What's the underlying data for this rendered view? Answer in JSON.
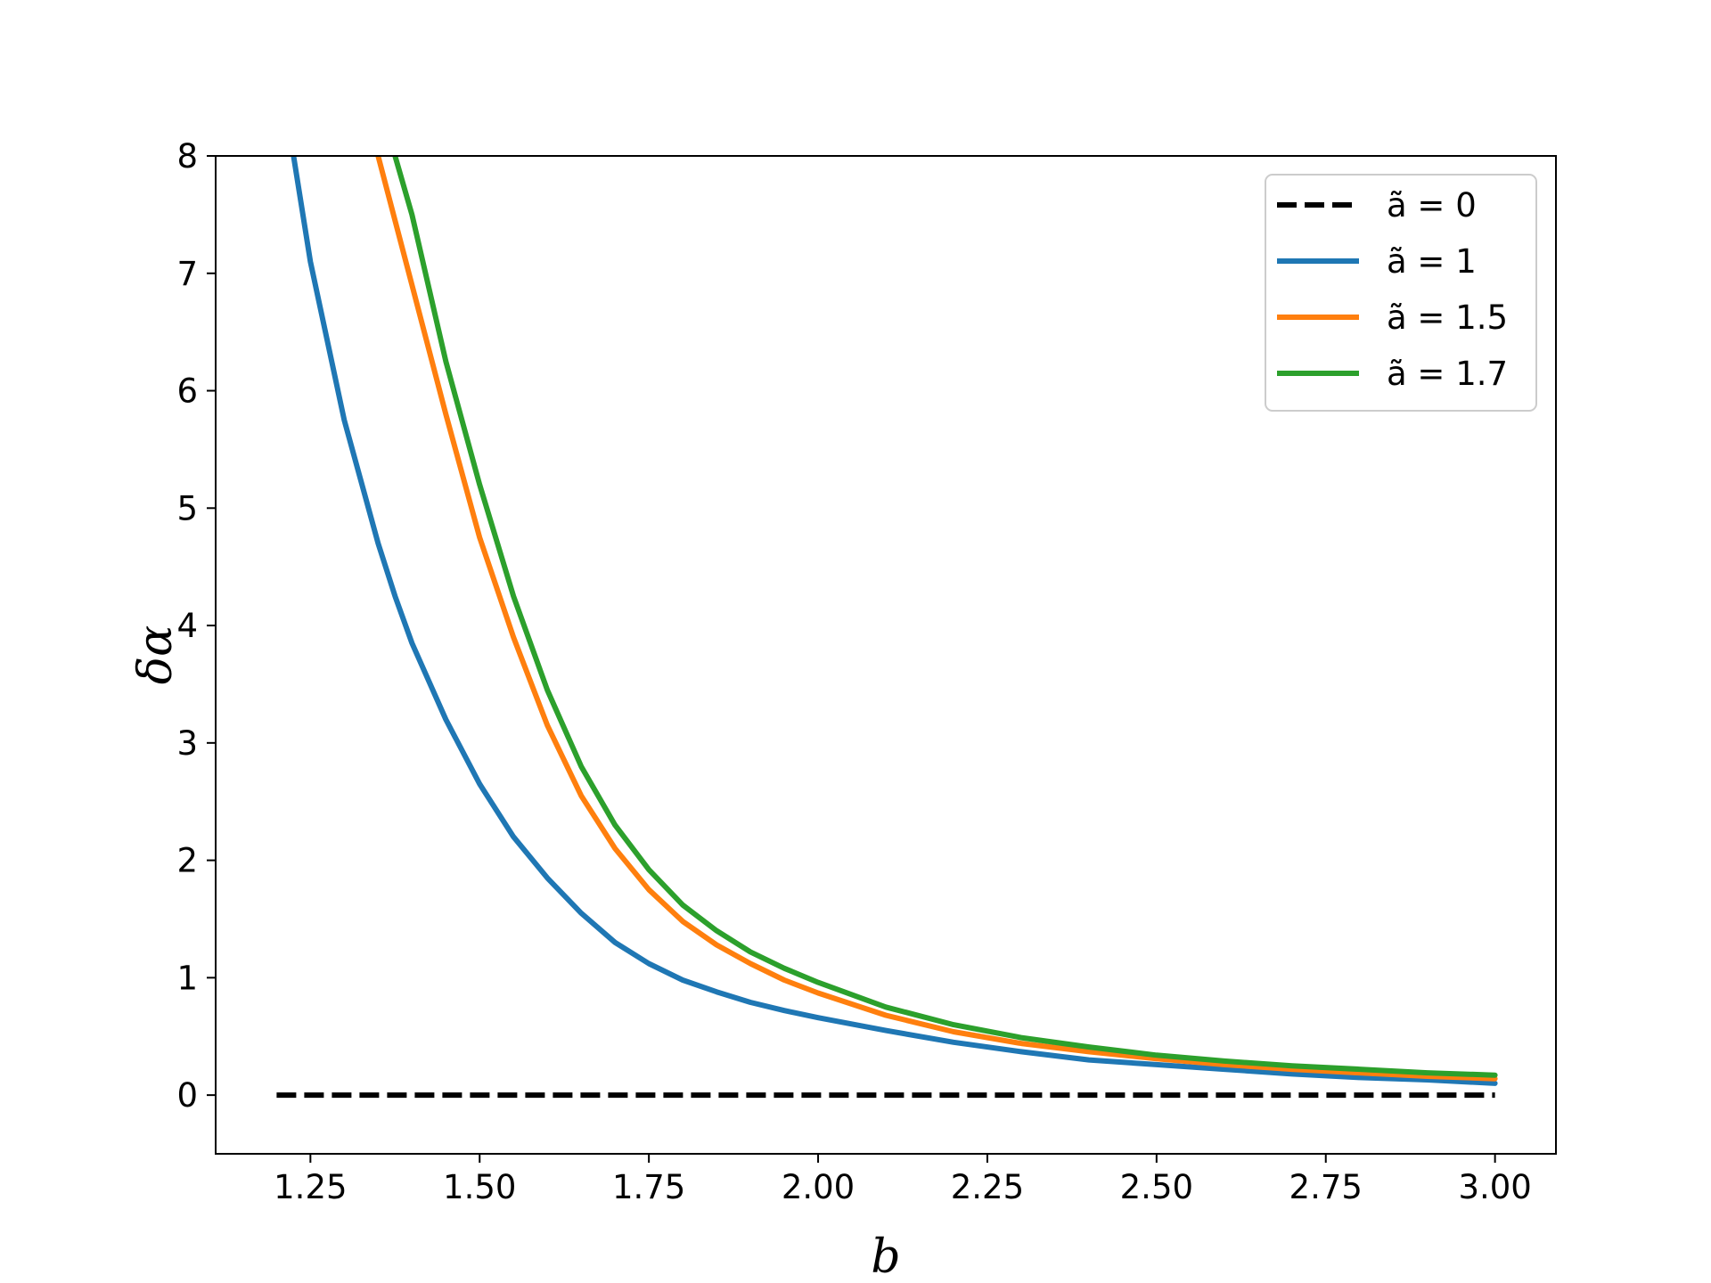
{
  "chart_data": {
    "type": "line",
    "title": "",
    "xlabel": "b",
    "ylabel": "δα",
    "xlim": [
      1.11,
      3.09
    ],
    "ylim": [
      -0.5,
      8
    ],
    "xticks": [
      "1.25",
      "1.50",
      "1.75",
      "2.00",
      "2.25",
      "2.50",
      "2.75",
      "3.00"
    ],
    "yticks": [
      "0",
      "1",
      "2",
      "3",
      "4",
      "5",
      "6",
      "7",
      "8"
    ],
    "grid": false,
    "legend_position": "top-right",
    "x": [
      1.2,
      1.225,
      1.25,
      1.3,
      1.35,
      1.375,
      1.4,
      1.45,
      1.5,
      1.55,
      1.6,
      1.65,
      1.7,
      1.75,
      1.8,
      1.85,
      1.9,
      1.95,
      2.0,
      2.1,
      2.2,
      2.3,
      2.4,
      2.5,
      2.6,
      2.7,
      2.8,
      2.9,
      3.0
    ],
    "series": [
      {
        "name": "ã = 0",
        "color": "#000000",
        "dashed": true,
        "values": [
          0,
          0,
          0,
          0,
          0,
          0,
          0,
          0,
          0,
          0,
          0,
          0,
          0,
          0,
          0,
          0,
          0,
          0,
          0,
          0,
          0,
          0,
          0,
          0,
          0,
          0,
          0,
          0,
          0
        ]
      },
      {
        "name": "ã = 1",
        "color": "#1f77b4",
        "dashed": false,
        "values": [
          null,
          8.0,
          7.1,
          5.75,
          4.7,
          4.25,
          3.85,
          3.2,
          2.65,
          2.2,
          1.85,
          1.55,
          1.3,
          1.12,
          0.98,
          0.88,
          0.79,
          0.72,
          0.66,
          0.55,
          0.45,
          0.37,
          0.3,
          0.26,
          0.22,
          0.18,
          0.15,
          0.13,
          0.1
        ]
      },
      {
        "name": "ã = 1.5",
        "color": "#ff7f0e",
        "dashed": false,
        "values": [
          null,
          null,
          null,
          null,
          8.0,
          7.45,
          6.9,
          5.8,
          4.75,
          3.9,
          3.15,
          2.55,
          2.1,
          1.75,
          1.48,
          1.28,
          1.12,
          0.98,
          0.87,
          0.68,
          0.54,
          0.44,
          0.37,
          0.31,
          0.26,
          0.22,
          0.19,
          0.16,
          0.14
        ]
      },
      {
        "name": "ã = 1.7",
        "color": "#2ca02c",
        "dashed": false,
        "values": [
          null,
          null,
          null,
          null,
          null,
          8.0,
          7.5,
          6.25,
          5.2,
          4.25,
          3.45,
          2.8,
          2.3,
          1.92,
          1.62,
          1.4,
          1.22,
          1.08,
          0.96,
          0.75,
          0.6,
          0.49,
          0.41,
          0.34,
          0.29,
          0.25,
          0.22,
          0.19,
          0.17
        ]
      }
    ]
  }
}
